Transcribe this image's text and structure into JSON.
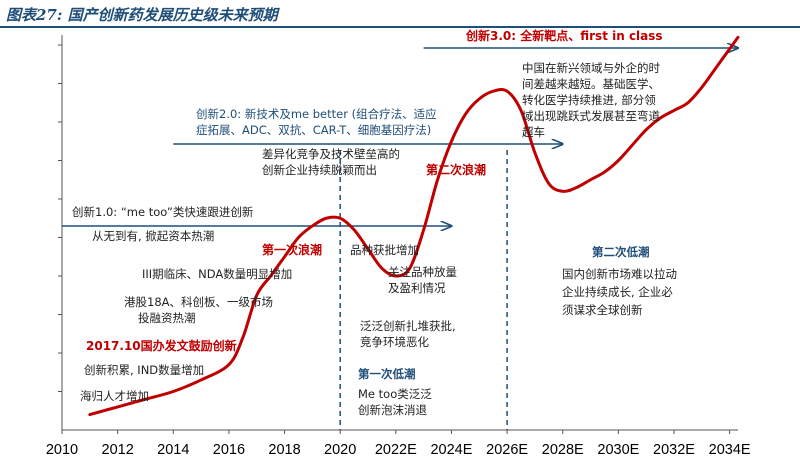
{
  "title": "图表27: 国产创新药发展历史级未来预期",
  "chart_data": {
    "type": "line",
    "x_ticks": [
      "2010",
      "2012",
      "2014",
      "2016",
      "2018",
      "2020",
      "2022E",
      "2024E",
      "2026E",
      "2028E",
      "2030E",
      "2032E",
      "2034E"
    ],
    "xlim": [
      2010,
      2034.3
    ],
    "ylim": [
      0,
      100
    ],
    "y_tick_labels_shown": false,
    "series": [
      {
        "x": [
          2011,
          2012,
          2013,
          2014,
          2015,
          2016,
          2016.5,
          2017,
          2017.5,
          2018,
          2018.5,
          2019,
          2019.5,
          2020,
          2020.5,
          2021,
          2021.5,
          2022,
          2022.5,
          2023,
          2023.5,
          2024,
          2024.5,
          2025,
          2025.5,
          2026,
          2026.5,
          2027,
          2027.5,
          2028,
          2028.5,
          2029,
          2029.5,
          2030,
          2030.5,
          2031,
          2031.5,
          2032,
          2032.5,
          2033,
          2033.5,
          2034,
          2034.3
        ],
        "y": [
          4,
          6,
          8,
          10,
          13,
          17,
          24,
          35,
          40,
          45,
          50,
          53,
          55,
          55,
          52,
          47,
          42,
          40,
          42,
          52,
          65,
          75,
          82,
          86,
          88,
          88,
          83,
          72,
          64,
          62,
          63,
          65,
          67,
          70,
          74,
          78,
          81,
          83,
          85,
          89,
          94,
          99,
          102
        ]
      }
    ],
    "vlines": [
      2020,
      2026
    ],
    "arrows": [
      {
        "label": "创新1.0: “me too”类快速跟进创新",
        "from": 2010,
        "to": 2024
      },
      {
        "label": "创新2.0: 新技术及me better (组合疗法、适应症拓展、ADC、双抗、CAR-T、细胞基因疗法)",
        "from": 2014,
        "to": 2028
      },
      {
        "label": "创新3.0: 全新靶点、first in class",
        "from": 2023,
        "to": 2034.3
      }
    ],
    "annotations": {
      "innov2_line1": "创新2.0: 新技术及me better (组合疗法、适应",
      "innov2_line2": "症拓展、ADC、双抗、CAR-T、细胞基因疗法)",
      "innov3_desc": [
        "中国在新兴领域与外企的时",
        "间差越来越短。基础医学、",
        "转化医学持续推进, 部分领",
        "域出现跳跃式发展甚至弯道",
        "超车"
      ],
      "diff_competition": [
        "差异化竞争及技术壁垒高的",
        "创新企业持续脱颖而出"
      ],
      "from_nothing": "从无到有, 掀起资本热潮",
      "phase3": "III期临床、NDA数量明显增加",
      "hk18a": [
        "港股18A、科创板、一级市场",
        "投融资热潮"
      ],
      "policy_2017": "2017.10国办发文鼓励创新",
      "ind": "创新积累, IND数量增加",
      "returnees": "海归人才增加",
      "wave1": "第一次浪潮",
      "wave2": "第二次浪潮",
      "approval_up": "品种获批增加",
      "focus_volume": [
        "关注品种放量",
        "及盈利情况"
      ],
      "herd": [
        "泛泛创新扎堆获批,",
        "竞争环境恶化"
      ],
      "low1_title": "第一次低潮",
      "low1_desc": [
        "Me too类泛泛",
        "创新泡沫消退"
      ],
      "low2_title": "第二次低潮",
      "low2_desc": [
        "国内创新市场难以拉动",
        "企业持续成长, 企业必",
        "须谋求全球创新"
      ]
    }
  }
}
